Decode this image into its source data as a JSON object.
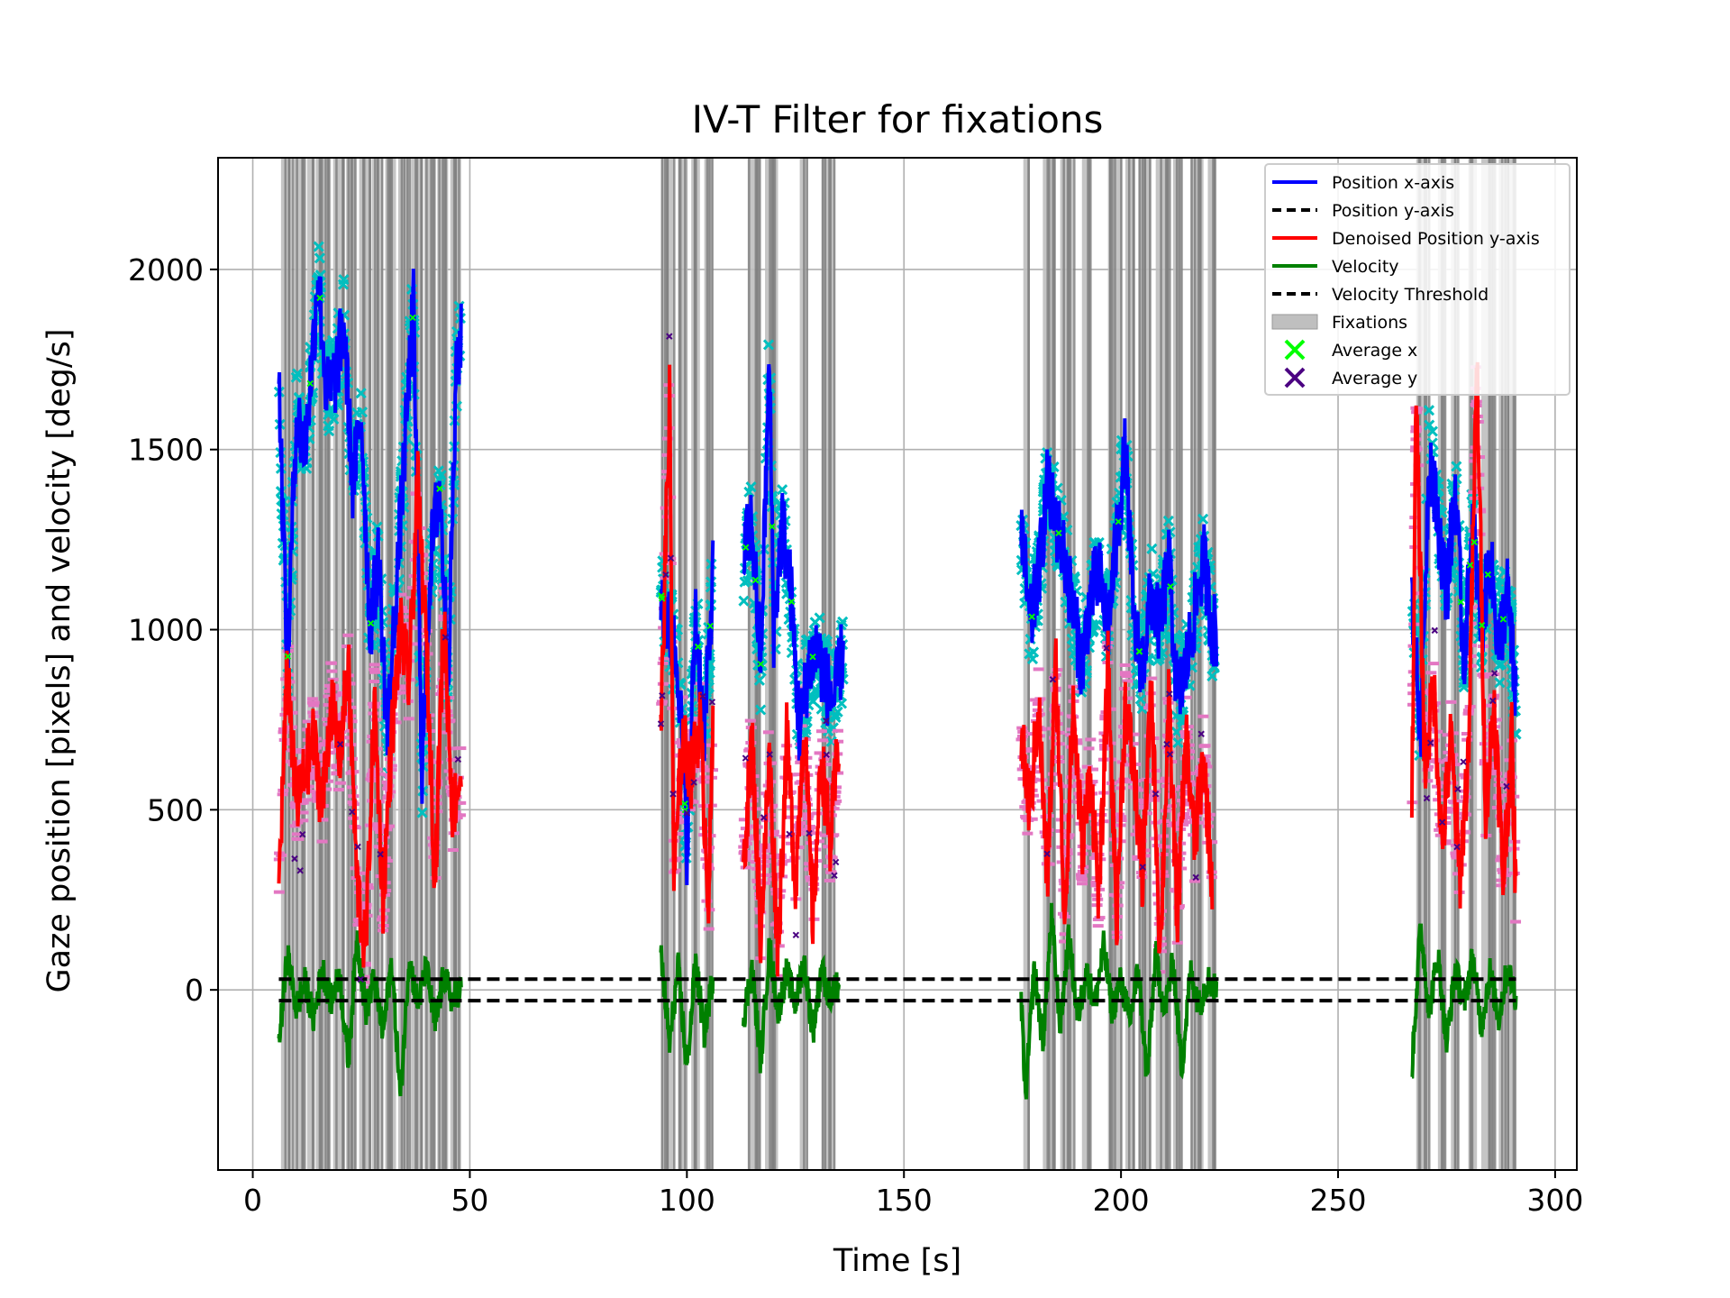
{
  "chart_data": {
    "type": "line",
    "title": "IV-T Filter for fixations",
    "xlabel": "Time [s]",
    "ylabel": "Gaze position [pixels] and velocity [deg/s]",
    "xlim": [
      -8,
      305
    ],
    "ylim": [
      -500,
      2310
    ],
    "xticks": [
      0,
      50,
      100,
      150,
      200,
      250,
      300
    ],
    "yticks": [
      0,
      500,
      1000,
      1500,
      2000
    ],
    "grid": true,
    "legend_position": "top-right",
    "velocity_threshold": [
      30,
      -30
    ],
    "colors": {
      "position_x": "#0000ff",
      "position_y": "#000000",
      "denoised_y": "#ff0000",
      "velocity": "#008000",
      "threshold": "#000000",
      "fixations": "#808080",
      "average_x": "#00ff00",
      "average_y": "#4b0082",
      "raw_x_markers": "#00bfbf",
      "raw_y_markers": "#e377c2"
    },
    "recording_segments": [
      {
        "t_start": 6,
        "t_end": 48
      },
      {
        "t_start": 94,
        "t_end": 106
      },
      {
        "t_start": 113,
        "t_end": 136
      },
      {
        "t_start": 177,
        "t_end": 222
      },
      {
        "t_start": 267,
        "t_end": 292
      }
    ],
    "fixation_intervals": [
      [
        6.5,
        9
      ],
      [
        9.5,
        12
      ],
      [
        12.5,
        14
      ],
      [
        14.5,
        18
      ],
      [
        18.5,
        21
      ],
      [
        21.5,
        24
      ],
      [
        24.5,
        27
      ],
      [
        27.5,
        30
      ],
      [
        30.5,
        33
      ],
      [
        33.5,
        36
      ],
      [
        36.5,
        39
      ],
      [
        39.5,
        42
      ],
      [
        42.5,
        45
      ],
      [
        45.5,
        48
      ],
      [
        94,
        97
      ],
      [
        98,
        100
      ],
      [
        101,
        103
      ],
      [
        104,
        106
      ],
      [
        114,
        117
      ],
      [
        118,
        121
      ],
      [
        126,
        127.5
      ],
      [
        131,
        134
      ],
      [
        177.5,
        179
      ],
      [
        182,
        185
      ],
      [
        186,
        189
      ],
      [
        191,
        193
      ],
      [
        197,
        200
      ],
      [
        201,
        203
      ],
      [
        204,
        207
      ],
      [
        208,
        211
      ],
      [
        212,
        214
      ],
      [
        216,
        219
      ],
      [
        220,
        222
      ],
      [
        268,
        271
      ],
      [
        273,
        275
      ],
      [
        276,
        278
      ],
      [
        280,
        282
      ],
      [
        283,
        286
      ],
      [
        287,
        291
      ]
    ],
    "series": [
      {
        "name": "Position x-axis",
        "segments": [
          {
            "t": [
              6,
              8,
              10,
              12,
              14,
              15,
              17,
              19,
              21,
              23,
              25,
              27,
              29,
              31,
              33,
              35,
              37,
              39,
              41,
              43,
              45,
              47,
              48
            ],
            "y": [
              1700,
              900,
              1600,
              1500,
              1800,
              2000,
              1650,
              1700,
              1850,
              1400,
              1600,
              1000,
              1200,
              700,
              1100,
              1500,
              1900,
              600,
              1200,
              1400,
              900,
              1750,
              1800
            ]
          },
          {
            "t": [
              94,
              96,
              98,
              100,
              102,
              104,
              106
            ],
            "y": [
              1100,
              1000,
              900,
              400,
              1050,
              700,
              1150
            ]
          },
          {
            "t": [
              113,
              115,
              117,
              119,
              120,
              122,
              124,
              126,
              128,
              130,
              132,
              134,
              136
            ],
            "y": [
              1200,
              1300,
              900,
              1750,
              1000,
              1300,
              1100,
              700,
              900,
              950,
              850,
              800,
              950
            ]
          },
          {
            "t": [
              177,
              179,
              181,
              183,
              185,
              187,
              189,
              191,
              193,
              195,
              197,
              199,
              201,
              203,
              205,
              207,
              209,
              211,
              213,
              215,
              217,
              219,
              221,
              222
            ],
            "y": [
              1300,
              1000,
              1150,
              1400,
              1300,
              1200,
              1050,
              900,
              1100,
              1150,
              1000,
              1250,
              1500,
              1000,
              900,
              1100,
              1000,
              1200,
              800,
              900,
              1050,
              1200,
              1000,
              1000
            ]
          },
          {
            "t": [
              267,
              269,
              271,
              273,
              275,
              277,
              279,
              281,
              283,
              285,
              287,
              289,
              291
            ],
            "y": [
              1100,
              700,
              1500,
              1300,
              1100,
              1400,
              900,
              1300,
              1000,
              1200,
              950,
              1100,
              800
            ]
          }
        ]
      },
      {
        "name": "Denoised Position y-axis",
        "segments": [
          {
            "t": [
              6,
              8,
              10,
              12,
              14,
              16,
              18,
              20,
              22,
              24,
              26,
              28,
              30,
              32,
              34,
              36,
              38,
              40,
              42,
              44,
              46,
              48
            ],
            "y": [
              300,
              900,
              500,
              600,
              700,
              500,
              800,
              650,
              900,
              300,
              100,
              800,
              250,
              700,
              1000,
              850,
              1400,
              950,
              300,
              1050,
              500,
              600
            ]
          },
          {
            "t": [
              94,
              96,
              97,
              99,
              101,
              103,
              105,
              106
            ],
            "y": [
              700,
              1650,
              300,
              700,
              600,
              750,
              250,
              700
            ]
          },
          {
            "t": [
              113,
              115,
              117,
              119,
              121,
              123,
              125,
              127,
              129,
              131,
              133,
              135
            ],
            "y": [
              350,
              700,
              150,
              650,
              100,
              700,
              300,
              750,
              200,
              650,
              400,
              700
            ]
          },
          {
            "t": [
              177,
              179,
              181,
              183,
              185,
              187,
              189,
              191,
              193,
              195,
              197,
              199,
              201,
              203,
              205,
              207,
              209,
              211,
              213,
              215,
              217,
              219,
              221
            ],
            "y": [
              700,
              500,
              800,
              300,
              900,
              200,
              800,
              400,
              600,
              250,
              900,
              200,
              800,
              600,
              300,
              850,
              100,
              800,
              200,
              700,
              400,
              650,
              300
            ]
          },
          {
            "t": [
              267,
              268,
              270,
              272,
              274,
              276,
              278,
              280,
              282,
              284,
              286,
              288,
              290,
              291
            ],
            "y": [
              500,
              1650,
              600,
              850,
              400,
              700,
              300,
              650,
              1750,
              500,
              800,
              300,
              700,
              250
            ]
          }
        ]
      },
      {
        "name": "Velocity",
        "segments": [
          {
            "t": [
              6,
              8,
              10,
              12,
              14,
              16,
              18,
              20,
              22,
              24,
              26,
              28,
              30,
              32,
              34,
              36,
              38,
              40,
              42,
              44,
              46,
              48
            ],
            "y": [
              -150,
              100,
              -50,
              20,
              -80,
              60,
              -30,
              40,
              -200,
              150,
              -60,
              30,
              -120,
              80,
              -300,
              90,
              -40,
              60,
              -100,
              40,
              -30,
              10
            ]
          },
          {
            "t": [
              94,
              96,
              98,
              100,
              102,
              104,
              106
            ],
            "y": [
              100,
              -150,
              60,
              -220,
              80,
              -120,
              40
            ]
          },
          {
            "t": [
              113,
              115,
              117,
              119,
              121,
              123,
              125,
              127,
              129,
              131,
              133,
              135
            ],
            "y": [
              -80,
              60,
              -200,
              120,
              -60,
              50,
              -40,
              80,
              -120,
              60,
              -30,
              20
            ]
          },
          {
            "t": [
              177,
              178,
              180,
              182,
              184,
              186,
              188,
              190,
              192,
              194,
              196,
              198,
              200,
              202,
              204,
              206,
              208,
              210,
              212,
              214,
              216,
              218,
              220,
              222
            ],
            "y": [
              -30,
              -300,
              60,
              -150,
              200,
              -100,
              150,
              -80,
              50,
              -40,
              120,
              -60,
              30,
              -90,
              60,
              -250,
              100,
              -60,
              80,
              -220,
              50,
              -40,
              30,
              0
            ]
          },
          {
            "t": [
              267,
              269,
              271,
              273,
              275,
              277,
              279,
              281,
              283,
              285,
              287,
              289,
              291
            ],
            "y": [
              -220,
              180,
              -60,
              100,
              -150,
              60,
              -40,
              90,
              -100,
              50,
              -80,
              60,
              -20
            ]
          }
        ]
      }
    ],
    "legend": [
      {
        "label": "Position x-axis",
        "style": "line",
        "color": "#0000ff"
      },
      {
        "label": "Position y-axis",
        "style": "dashed",
        "color": "#000000"
      },
      {
        "label": "Denoised Position y-axis",
        "style": "line",
        "color": "#ff0000"
      },
      {
        "label": "Velocity",
        "style": "line",
        "color": "#008000"
      },
      {
        "label": "Velocity Threshold",
        "style": "dashed",
        "color": "#000000"
      },
      {
        "label": "Fixations",
        "style": "patch",
        "color": "#bfbfbf"
      },
      {
        "label": "Average x",
        "style": "xmarker",
        "color": "#00ff00"
      },
      {
        "label": "Average y",
        "style": "xmarker",
        "color": "#4b0082"
      }
    ]
  }
}
